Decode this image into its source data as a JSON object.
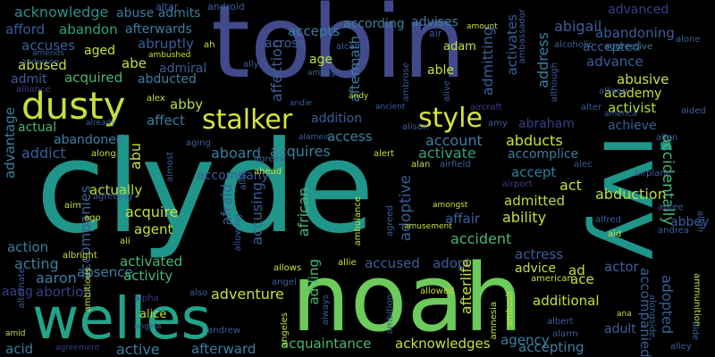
{
  "words": {
    "tobin": "tobin",
    "clyde": "clyde",
    "noah": "noah",
    "ivy": "ivy",
    "welles": "welles",
    "dusty": "dusty",
    "stalker": "stalker",
    "style": "style",
    "acknowledge": "acknowledge",
    "abuse_admits": "abuse admits",
    "afford": "afford",
    "abandon": "abandon",
    "afterwards": "afterwards",
    "accuses": "accuses",
    "abruptly": "abruptly",
    "abused": "abused",
    "aged": "aged",
    "abe": "abe",
    "admit": "admit",
    "acquired": "acquired",
    "abducted": "abducted",
    "admiral": "admiral",
    "abby": "abby",
    "affect": "affect",
    "actual": "actual",
    "abandoned": "abandoned",
    "addict": "addict",
    "aboard": "aboard",
    "acquires": "acquires",
    "access": "access",
    "addition": "addition",
    "across": "across",
    "accepts": "accepts",
    "according": "according",
    "advises": "advises",
    "abigail": "abigail",
    "advanced": "advanced",
    "abandoning": "abandoning",
    "accepted": "accepted",
    "advance": "advance",
    "abusive": "abusive",
    "academy": "academy",
    "activist": "activist",
    "adam": "adam",
    "able": "able",
    "age": "age",
    "affection": "affection",
    "aftermath": "aftermath",
    "admitting": "admitting",
    "activates": "activates",
    "address": "address",
    "achieve": "achieve",
    "abraham": "abraham",
    "account": "account",
    "abducts": "abducts",
    "activate": "activate",
    "accomplice": "accomplice",
    "accept": "accept",
    "act": "act",
    "abduction": "abduction",
    "accidentally": "accidentally",
    "admitted": "admitted",
    "adoptive": "adoptive",
    "affair": "affair",
    "ability": "ability",
    "african": "african",
    "afraid": "afraid",
    "accompany": "accompany",
    "accusing": "accusing",
    "actually": "actually",
    "accompanies": "accompanies",
    "advantage": "advantage",
    "action": "action",
    "acquire": "acquire",
    "agent": "agent",
    "abu": "abu",
    "accident": "accident",
    "abbey": "abbey",
    "actress": "actress",
    "actor": "actor",
    "acting": "acting",
    "absence": "absence",
    "aaron": "aaron",
    "abortion": "abortion",
    "activated": "activated",
    "activity": "activity",
    "adventure": "adventure",
    "adding": "adding",
    "accused": "accused",
    "adopt": "adopt",
    "advice": "advice",
    "ad": "ad",
    "ace": "ace",
    "adopted": "adopted",
    "accompanied": "accompanied",
    "additional": "additional",
    "adult": "adult",
    "afterlife": "afterlife",
    "acquaintance": "acquaintance",
    "acknowledges": "acknowledges",
    "agency": "agency",
    "accepting": "accepting",
    "active": "active",
    "afterward": "afterward",
    "acid": "acid",
    "aang": "aang",
    "alice": "alice",
    "adam2": "adam",
    "aircraft": "aircraft",
    "alcohol": "alcohol",
    "air": "air",
    "alcoholic": "alcoholic",
    "aggressive": "aggressive",
    "alone": "alone",
    "altar": "altar",
    "android": "android",
    "amount": "amount",
    "ah": "ah",
    "ambushed": "ambushed",
    "anderson": "anderson",
    "amends": "amends",
    "alliance": "alliance",
    "ally": "ally",
    "among": "among",
    "alex": "alex",
    "alter": "alter",
    "america": "america",
    "aided": "aided",
    "alison": "alison",
    "allison": "allison",
    "although": "although",
    "andie": "andie",
    "andy": "andy",
    "ancient": "ancient",
    "amy": "amy",
    "alamein": "alamein",
    "alert": "alert",
    "alan": "alan",
    "airfield": "airfield",
    "alec": "alec",
    "allen": "allen",
    "aging": "aging",
    "agrees": "agrees",
    "ahead": "ahead",
    "almost": "almost",
    "along": "along",
    "already": "already",
    "airplane": "airplane",
    "airport": "airport",
    "amongst": "amongst",
    "agreeing": "agreeing",
    "aim": "aim",
    "ago": "ago",
    "alfred": "alfred",
    "agree": "agree",
    "alien": "alien",
    "aid": "aid",
    "andrea": "andrea",
    "amusement": "amusement",
    "ambulance": "ambulance",
    "ali": "ali",
    "albright": "albright",
    "allowing": "allowing",
    "allie": "allie",
    "allows": "allows",
    "angel": "angel",
    "allowed": "allowed",
    "american": "american",
    "ambush": "ambush",
    "amnesia": "amnesia",
    "alongside": "alongside",
    "ammunition": "ammunition",
    "ana": "ana",
    "albert": "albert",
    "alarm": "alarm",
    "alley": "alley",
    "aide": "aide",
    "alpha": "alpha",
    "also": "also",
    "always": "always",
    "alive": "alive",
    "ambrose": "ambrose",
    "ambassador": "ambassador",
    "alternate": "alternate",
    "ambitious": "ambitious",
    "angela": "angela",
    "angeles": "angeles",
    "andrew": "andrew",
    "ambition": "ambition",
    "agreed": "agreed",
    "agreement": "agreement",
    "amid": "amid",
    "alias": "alias",
    "ally2": "allow",
    "alexander": "alexander",
    "amulet": "amulet",
    "alarm2": "alarms"
  }
}
